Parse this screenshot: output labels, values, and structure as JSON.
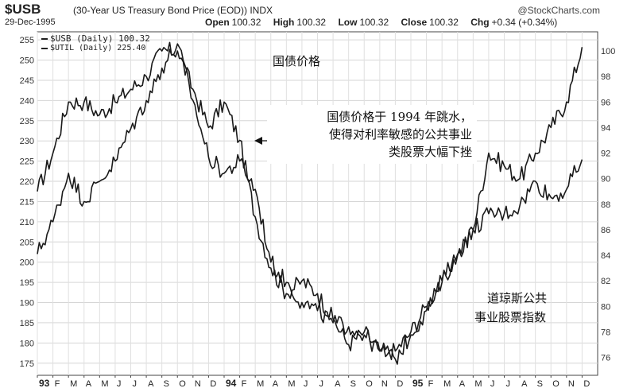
{
  "header": {
    "ticker": "$USB",
    "subtitle": "(30-Year US Treasury Bond Price (EOD))",
    "exchange": "INDX",
    "brand": "@StockCharts.com",
    "date": "29-Dec-1995",
    "open_label": "Open",
    "open": "100.32",
    "high_label": "High",
    "high": "100.32",
    "low_label": "Low",
    "low": "100.32",
    "close_label": "Close",
    "close": "100.32",
    "chg_label": "Chg",
    "chg": "+0.34 (+0.34%)"
  },
  "legend": {
    "usb": "$USB (Daily) 100.32",
    "util": "$UTIL (Daily) 225.40"
  },
  "annotations": {
    "bond_label": "国债价格",
    "note_lines": [
      "国债价格于 1994 年跳水，",
      "使得对利率敏感的公共事业",
      "类股票大幅下挫"
    ],
    "util_label_lines": [
      "道琼斯公共",
      "事业股票指数"
    ]
  },
  "chart_data": {
    "type": "line",
    "title": "$USB (30-Year US Treasury Bond Price (EOD)) INDX",
    "x_range": [
      "1993-01",
      "1996-01"
    ],
    "x_tick_labels": [
      "93",
      "F",
      "M",
      "A",
      "M",
      "J",
      "J",
      "A",
      "S",
      "O",
      "N",
      "D",
      "94",
      "F",
      "M",
      "A",
      "M",
      "J",
      "J",
      "A",
      "S",
      "O",
      "N",
      "D",
      "95",
      "F",
      "M",
      "A",
      "M",
      "J",
      "J",
      "A",
      "S",
      "O",
      "N",
      "D"
    ],
    "left_axis": {
      "series": "$UTIL",
      "ylim": [
        172,
        257
      ],
      "ticks": [
        175,
        180,
        185,
        190,
        195,
        200,
        205,
        210,
        215,
        220,
        225,
        230,
        235,
        240,
        245,
        250,
        255
      ]
    },
    "right_axis": {
      "series": "$USB",
      "ylim": [
        74.6,
        101.5
      ],
      "ticks": [
        76,
        78,
        80,
        82,
        84,
        86,
        88,
        90,
        92,
        94,
        96,
        98,
        100
      ]
    },
    "grid": true,
    "series": [
      {
        "name": "$USB",
        "axis": "right",
        "x": [
          "1993-01",
          "1993-02",
          "1993-03",
          "1993-04",
          "1993-05",
          "1993-06",
          "1993-07",
          "1993-08",
          "1993-09",
          "1993-10",
          "1993-11",
          "1993-12",
          "1994-01",
          "1994-02",
          "1994-03",
          "1994-04",
          "1994-05",
          "1994-06",
          "1994-07",
          "1994-08",
          "1994-09",
          "1994-10",
          "1994-11",
          "1994-12",
          "1995-01",
          "1995-02",
          "1995-03",
          "1995-04",
          "1995-05",
          "1995-06",
          "1995-07",
          "1995-08",
          "1995-09",
          "1995-10",
          "1995-11",
          "1995-12"
        ],
        "values": [
          89,
          92,
          96,
          96,
          95,
          96,
          97,
          98,
          100,
          100,
          97,
          94,
          96,
          93,
          87,
          83,
          81,
          82,
          81,
          79,
          77,
          78,
          76.5,
          76.5,
          78,
          80,
          82,
          84,
          86,
          92,
          91,
          90,
          92,
          94,
          96,
          100.3
        ]
      },
      {
        "name": "$UTIL",
        "axis": "left",
        "x": [
          "1993-01",
          "1993-02",
          "1993-03",
          "1993-04",
          "1993-05",
          "1993-06",
          "1993-07",
          "1993-08",
          "1993-09",
          "1993-10",
          "1993-11",
          "1993-12",
          "1994-01",
          "1994-02",
          "1994-03",
          "1994-04",
          "1994-05",
          "1994-06",
          "1994-07",
          "1994-08",
          "1994-09",
          "1994-10",
          "1994-11",
          "1994-12",
          "1995-01",
          "1995-02",
          "1995-03",
          "1995-04",
          "1995-05",
          "1995-06",
          "1995-07",
          "1995-08",
          "1995-09",
          "1995-10",
          "1995-11",
          "1995-12"
        ],
        "values": [
          202,
          210,
          222,
          215,
          220,
          225,
          233,
          240,
          248,
          254,
          240,
          226,
          222,
          225,
          218,
          200,
          195,
          190,
          188,
          185,
          184,
          182,
          178,
          176,
          182,
          188,
          195,
          202,
          208,
          212,
          212,
          214,
          220,
          216,
          218,
          225.4
        ]
      }
    ]
  }
}
